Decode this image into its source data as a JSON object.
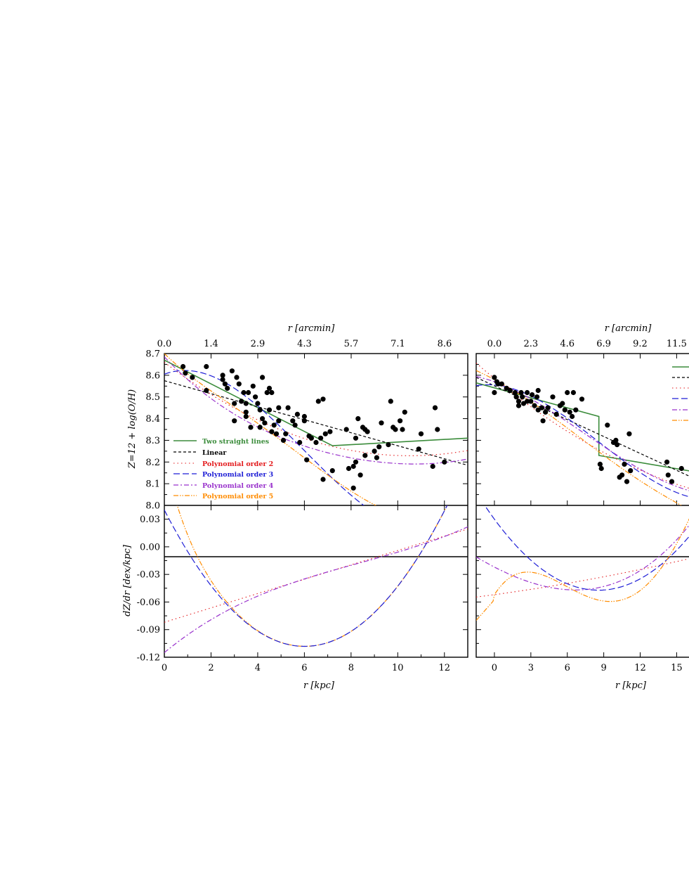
{
  "figure": {
    "colors": {
      "two_lines": "#3b8c3b",
      "linear": "#000000",
      "poly2": "#e31a1c",
      "poly3": "#1f1fd6",
      "poly4": "#9932cc",
      "poly5": "#ff8c00",
      "points": "#000000"
    }
  },
  "chart_data": [
    {
      "type": "scatter",
      "panel": "left-top",
      "ylabel": "Z=12 + log(O/H)",
      "top_xlabel": "r [arcmin]",
      "xlim": [
        0,
        13
      ],
      "ylim": [
        8.0,
        8.7
      ],
      "yticks": [
        "8.0",
        "8.1",
        "8.2",
        "8.3",
        "8.4",
        "8.5",
        "8.6",
        "8.7"
      ],
      "top_ticks": [
        "0.0",
        "1.4",
        "2.9",
        "4.3",
        "5.7",
        "7.1",
        "8.6"
      ],
      "legend": [
        "Two straight lines",
        "Linear",
        "Polynomial order 2",
        "Polynomial order 3",
        "Polynomial order 4",
        "Polynomial order 5"
      ],
      "points": [
        [
          0.8,
          8.64
        ],
        [
          0.9,
          8.61
        ],
        [
          1.2,
          8.59
        ],
        [
          1.8,
          8.64
        ],
        [
          1.8,
          8.53
        ],
        [
          2.5,
          8.6
        ],
        [
          2.5,
          8.58
        ],
        [
          2.6,
          8.56
        ],
        [
          2.7,
          8.54
        ],
        [
          2.9,
          8.62
        ],
        [
          3.0,
          8.47
        ],
        [
          3.0,
          8.39
        ],
        [
          3.1,
          8.59
        ],
        [
          3.2,
          8.56
        ],
        [
          3.3,
          8.48
        ],
        [
          3.4,
          8.52
        ],
        [
          3.5,
          8.47
        ],
        [
          3.5,
          8.43
        ],
        [
          3.5,
          8.41
        ],
        [
          3.6,
          8.52
        ],
        [
          3.7,
          8.36
        ],
        [
          3.8,
          8.55
        ],
        [
          3.9,
          8.5
        ],
        [
          4.0,
          8.47
        ],
        [
          4.1,
          8.44
        ],
        [
          4.1,
          8.36
        ],
        [
          4.2,
          8.59
        ],
        [
          4.2,
          8.4
        ],
        [
          4.3,
          8.38
        ],
        [
          4.4,
          8.52
        ],
        [
          4.5,
          8.54
        ],
        [
          4.5,
          8.44
        ],
        [
          4.6,
          8.52
        ],
        [
          4.6,
          8.34
        ],
        [
          4.7,
          8.37
        ],
        [
          4.8,
          8.33
        ],
        [
          4.9,
          8.45
        ],
        [
          4.9,
          8.39
        ],
        [
          5.1,
          8.3
        ],
        [
          5.2,
          8.33
        ],
        [
          5.3,
          8.45
        ],
        [
          5.5,
          8.39
        ],
        [
          5.6,
          8.37
        ],
        [
          5.7,
          8.42
        ],
        [
          5.8,
          8.29
        ],
        [
          6.0,
          8.39
        ],
        [
          6.0,
          8.41
        ],
        [
          6.1,
          8.21
        ],
        [
          6.2,
          8.32
        ],
        [
          6.3,
          8.31
        ],
        [
          6.5,
          8.29
        ],
        [
          6.6,
          8.48
        ],
        [
          6.7,
          8.31
        ],
        [
          6.8,
          8.12
        ],
        [
          6.8,
          8.49
        ],
        [
          6.9,
          8.33
        ],
        [
          7.1,
          8.34
        ],
        [
          7.2,
          8.16
        ],
        [
          7.8,
          8.35
        ],
        [
          7.9,
          8.17
        ],
        [
          8.1,
          8.08
        ],
        [
          8.1,
          8.18
        ],
        [
          8.2,
          8.31
        ],
        [
          8.2,
          8.2
        ],
        [
          8.3,
          8.4
        ],
        [
          8.4,
          8.14
        ],
        [
          8.5,
          8.36
        ],
        [
          8.6,
          8.35
        ],
        [
          8.6,
          8.23
        ],
        [
          8.7,
          8.34
        ],
        [
          9.0,
          8.25
        ],
        [
          9.1,
          8.22
        ],
        [
          9.2,
          8.27
        ],
        [
          9.3,
          8.38
        ],
        [
          9.6,
          8.28
        ],
        [
          9.7,
          8.48
        ],
        [
          9.8,
          8.36
        ],
        [
          9.9,
          8.35
        ],
        [
          10.1,
          8.39
        ],
        [
          10.2,
          8.35
        ],
        [
          10.3,
          8.43
        ],
        [
          10.9,
          8.26
        ],
        [
          11.0,
          8.33
        ],
        [
          11.5,
          8.18
        ],
        [
          11.6,
          8.45
        ],
        [
          11.7,
          8.35
        ],
        [
          12.0,
          8.2
        ]
      ]
    },
    {
      "type": "line",
      "panel": "left-bottom",
      "xlabel": "r [kpc]",
      "ylabel": "dZ/dr [dex/kpc]",
      "xlim": [
        0,
        13
      ],
      "ylim": [
        -0.12,
        0.045
      ],
      "xticks": [
        "0",
        "2",
        "4",
        "6",
        "8",
        "10",
        "12"
      ],
      "yticks": [
        "-0.12",
        "-0.09",
        "-0.06",
        "-0.03",
        "0.00",
        "0.03"
      ]
    },
    {
      "type": "scatter",
      "panel": "right-top",
      "top_xlabel": "r [arcmin]",
      "xlim": [
        -1.5,
        17
      ],
      "ylim": [
        8.0,
        8.7
      ],
      "top_ticks": [
        "0.0",
        "2.3",
        "4.6",
        "6.9",
        "9.2",
        "11.5"
      ],
      "points": [
        [
          0,
          8.59
        ],
        [
          0,
          8.52
        ],
        [
          0.2,
          8.57
        ],
        [
          0.3,
          8.56
        ],
        [
          0.6,
          8.56
        ],
        [
          1,
          8.54
        ],
        [
          1.3,
          8.53
        ],
        [
          1.7,
          8.52
        ],
        [
          1.8,
          8.5
        ],
        [
          2,
          8.46
        ],
        [
          2,
          8.48
        ],
        [
          2.2,
          8.52
        ],
        [
          2.3,
          8.5
        ],
        [
          2.4,
          8.47
        ],
        [
          2.7,
          8.48
        ],
        [
          2.7,
          8.52
        ],
        [
          3,
          8.48
        ],
        [
          3.1,
          8.51
        ],
        [
          3.3,
          8.46
        ],
        [
          3.5,
          8.5
        ],
        [
          3.6,
          8.44
        ],
        [
          3.6,
          8.53
        ],
        [
          3.9,
          8.45
        ],
        [
          4,
          8.39
        ],
        [
          4.2,
          8.43
        ],
        [
          4.4,
          8.45
        ],
        [
          4.8,
          8.5
        ],
        [
          5.1,
          8.42
        ],
        [
          5.4,
          8.46
        ],
        [
          5.6,
          8.47
        ],
        [
          5.8,
          8.44
        ],
        [
          6,
          8.52
        ],
        [
          6.2,
          8.43
        ],
        [
          6.4,
          8.41
        ],
        [
          6.5,
          8.52
        ],
        [
          6.7,
          8.44
        ],
        [
          7.2,
          8.49
        ],
        [
          8.7,
          8.19
        ],
        [
          8.8,
          8.17
        ],
        [
          9.3,
          8.37
        ],
        [
          9.8,
          8.29
        ],
        [
          10,
          8.3
        ],
        [
          10.1,
          8.28
        ],
        [
          10.3,
          8.13
        ],
        [
          10.5,
          8.14
        ],
        [
          10.7,
          8.19
        ],
        [
          10.9,
          8.11
        ],
        [
          11.1,
          8.33
        ],
        [
          11.2,
          8.16
        ],
        [
          14.2,
          8.2
        ],
        [
          14.3,
          8.14
        ],
        [
          14.6,
          8.11
        ],
        [
          15.4,
          8.17
        ]
      ]
    },
    {
      "type": "line",
      "panel": "right-bottom",
      "xlabel": "r [kpc]",
      "xlim": [
        -1.5,
        17
      ],
      "ylim": [
        -0.12,
        0.045
      ],
      "xticks": [
        "0",
        "3",
        "6",
        "9",
        "12",
        "15"
      ]
    }
  ]
}
